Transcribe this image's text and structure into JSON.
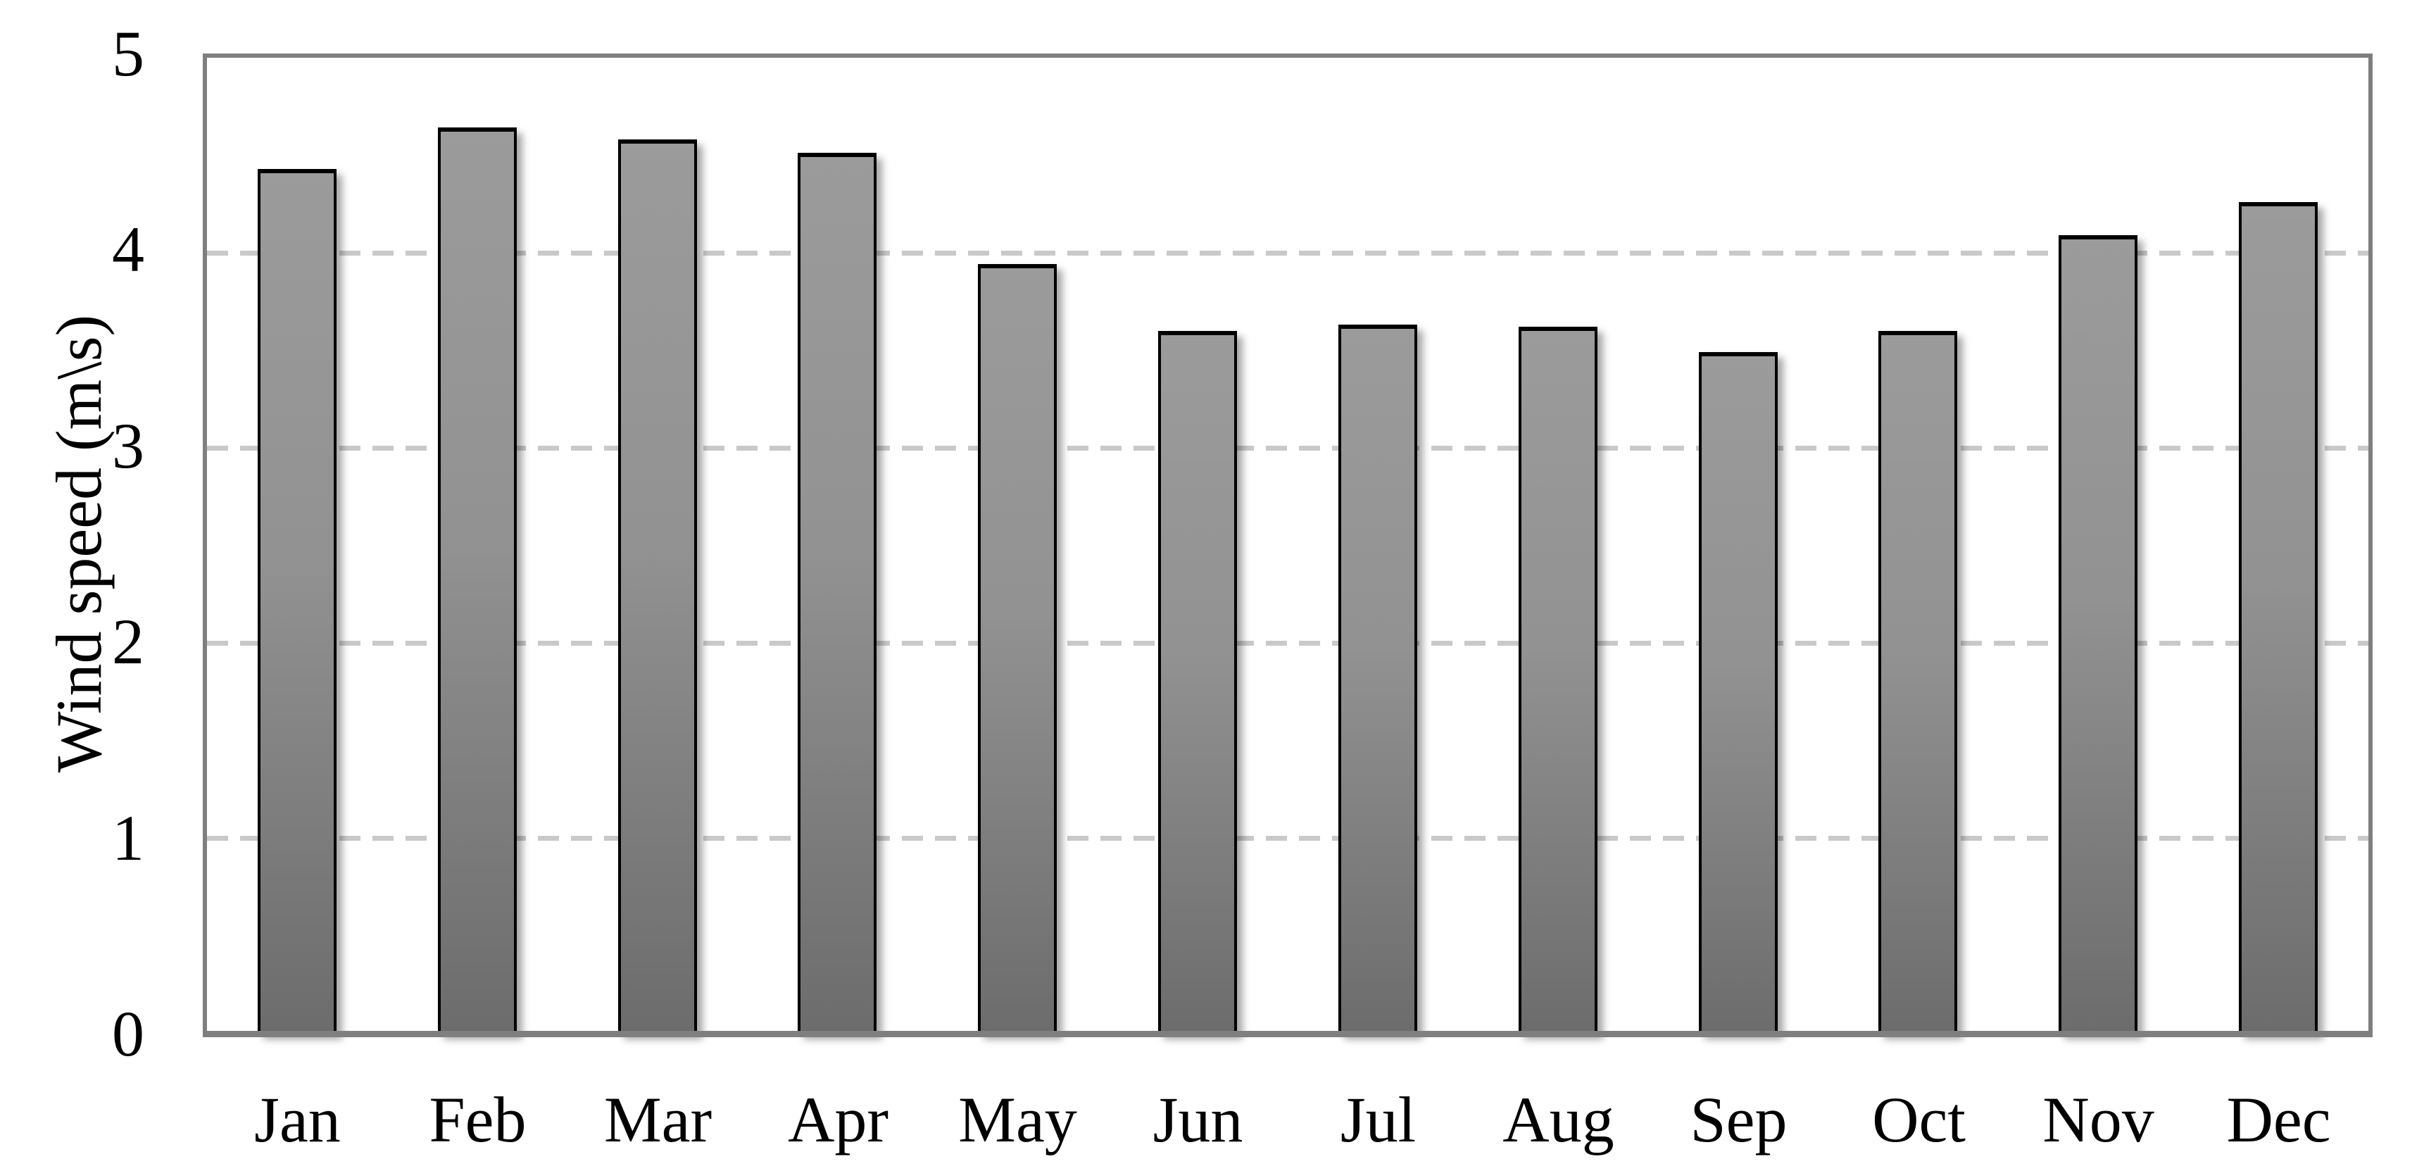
{
  "figure": {
    "background_color": "#ffffff",
    "text_color": "#000000",
    "axis_color": "#7f7f7f",
    "gridline_color": "#c9c9c9",
    "bar_fill_top": "#9b9b9b",
    "bar_fill_bottom": "#6c6c6c",
    "bar_border_color": "#000000"
  },
  "chart_data": {
    "type": "bar",
    "title": "",
    "xlabel": "",
    "ylabel": "Wind speed (m\\s)",
    "categories": [
      "Jan",
      "Feb",
      "Mar",
      "Apr",
      "May",
      "Jun",
      "Jul",
      "Aug",
      "Sep",
      "Oct",
      "Nov",
      "Dec"
    ],
    "values": [
      4.41,
      4.62,
      4.56,
      4.49,
      3.92,
      3.58,
      3.61,
      3.6,
      3.47,
      3.58,
      4.07,
      4.24
    ],
    "series_name": "Wind speed (m\\s)",
    "ylim": [
      0,
      5
    ],
    "yticks": [
      0,
      1,
      2,
      3,
      4,
      5
    ],
    "grid": "horizontal-dashed",
    "legend": "none"
  }
}
